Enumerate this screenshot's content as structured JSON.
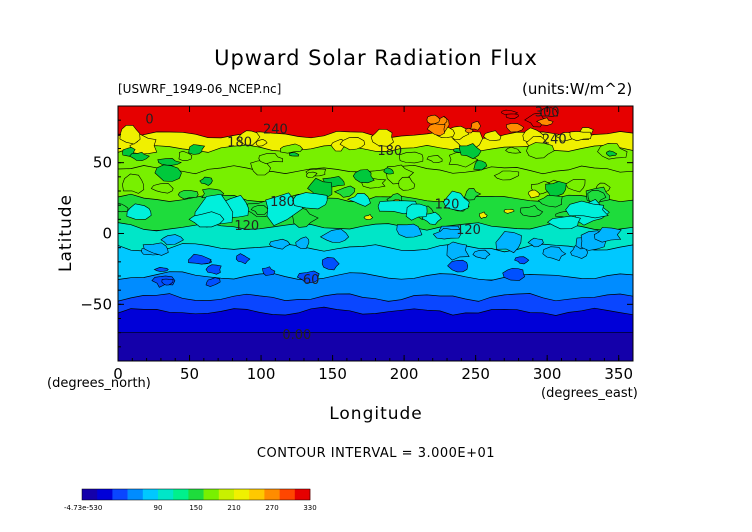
{
  "chart_data": {
    "type": "heatmap",
    "title": "Upward Solar Radiation Flux",
    "subtitle_left": "[USWRF_1949-06_NCEP.nc]",
    "units_label": "(units:W/m^2)",
    "xlabel": "Longitude",
    "ylabel": "Latitude",
    "x_units": "(degrees_east)",
    "y_units": "(degrees_north)",
    "xlim": [
      0,
      360
    ],
    "ylim": [
      -90,
      90
    ],
    "x_ticks": [
      0,
      50,
      100,
      150,
      200,
      250,
      300,
      350
    ],
    "y_ticks": [
      -50,
      0,
      50
    ],
    "contour_interval_text": "CONTOUR INTERVAL = 3.000E+01",
    "contour_interval": 30,
    "contour_labels": [
      {
        "text": "300",
        "lon": 300,
        "lat": 85
      },
      {
        "text": "240",
        "lon": 110,
        "lat": 73
      },
      {
        "text": "180",
        "lon": 85,
        "lat": 64
      },
      {
        "text": "180",
        "lon": 190,
        "lat": 58
      },
      {
        "text": "240",
        "lon": 305,
        "lat": 66
      },
      {
        "text": "180",
        "lon": 115,
        "lat": 22
      },
      {
        "text": "120",
        "lon": 230,
        "lat": 20
      },
      {
        "text": "120",
        "lon": 90,
        "lat": 5
      },
      {
        "text": "120",
        "lon": 245,
        "lat": 2
      },
      {
        "text": "60",
        "lon": 135,
        "lat": -33
      },
      {
        "text": "0.00",
        "lon": 125,
        "lat": -72
      },
      {
        "text": "0",
        "lon": 22,
        "lat": 80
      }
    ],
    "latitude_bands": [
      {
        "lat_range": [
          70,
          90
        ],
        "value": 315
      },
      {
        "lat_range": [
          60,
          70
        ],
        "value": 210
      },
      {
        "lat_range": [
          45,
          60
        ],
        "value": 180
      },
      {
        "lat_range": [
          25,
          45
        ],
        "value": 165
      },
      {
        "lat_range": [
          5,
          25
        ],
        "value": 150
      },
      {
        "lat_range": [
          -10,
          5
        ],
        "value": 105
      },
      {
        "lat_range": [
          -30,
          -10
        ],
        "value": 75
      },
      {
        "lat_range": [
          -45,
          -30
        ],
        "value": 45
      },
      {
        "lat_range": [
          -55,
          -45
        ],
        "value": 30
      },
      {
        "lat_range": [
          -70,
          -55
        ],
        "value": 10
      },
      {
        "lat_range": [
          -90,
          -70
        ],
        "value": -30
      }
    ],
    "colorbar": {
      "min_label": "-4.73e-530",
      "tick_labels": [
        "90",
        "150",
        "210",
        "270",
        "330"
      ],
      "range": [
        -30,
        330
      ],
      "colors": [
        "#1400aa",
        "#0000d8",
        "#0a46ff",
        "#008cff",
        "#00c8ff",
        "#00e6c8",
        "#00f08c",
        "#1edc3c",
        "#78f000",
        "#c8f000",
        "#f0f000",
        "#ffc800",
        "#ff8c00",
        "#ff4600",
        "#e60000"
      ]
    },
    "fill_colors": {
      "arctic": "#ff4a10",
      "antarctic": "#7a10b4",
      "south_dark_blue": "#0000c8",
      "south_mid_blue": "#0050ff",
      "south_light_blue": "#00b4ff",
      "equatorial_cyan": "#00f0dc",
      "green_dark": "#00c83c",
      "green_mid": "#1edc3c",
      "green_light": "#78f000",
      "yellow": "#f0f000"
    }
  }
}
